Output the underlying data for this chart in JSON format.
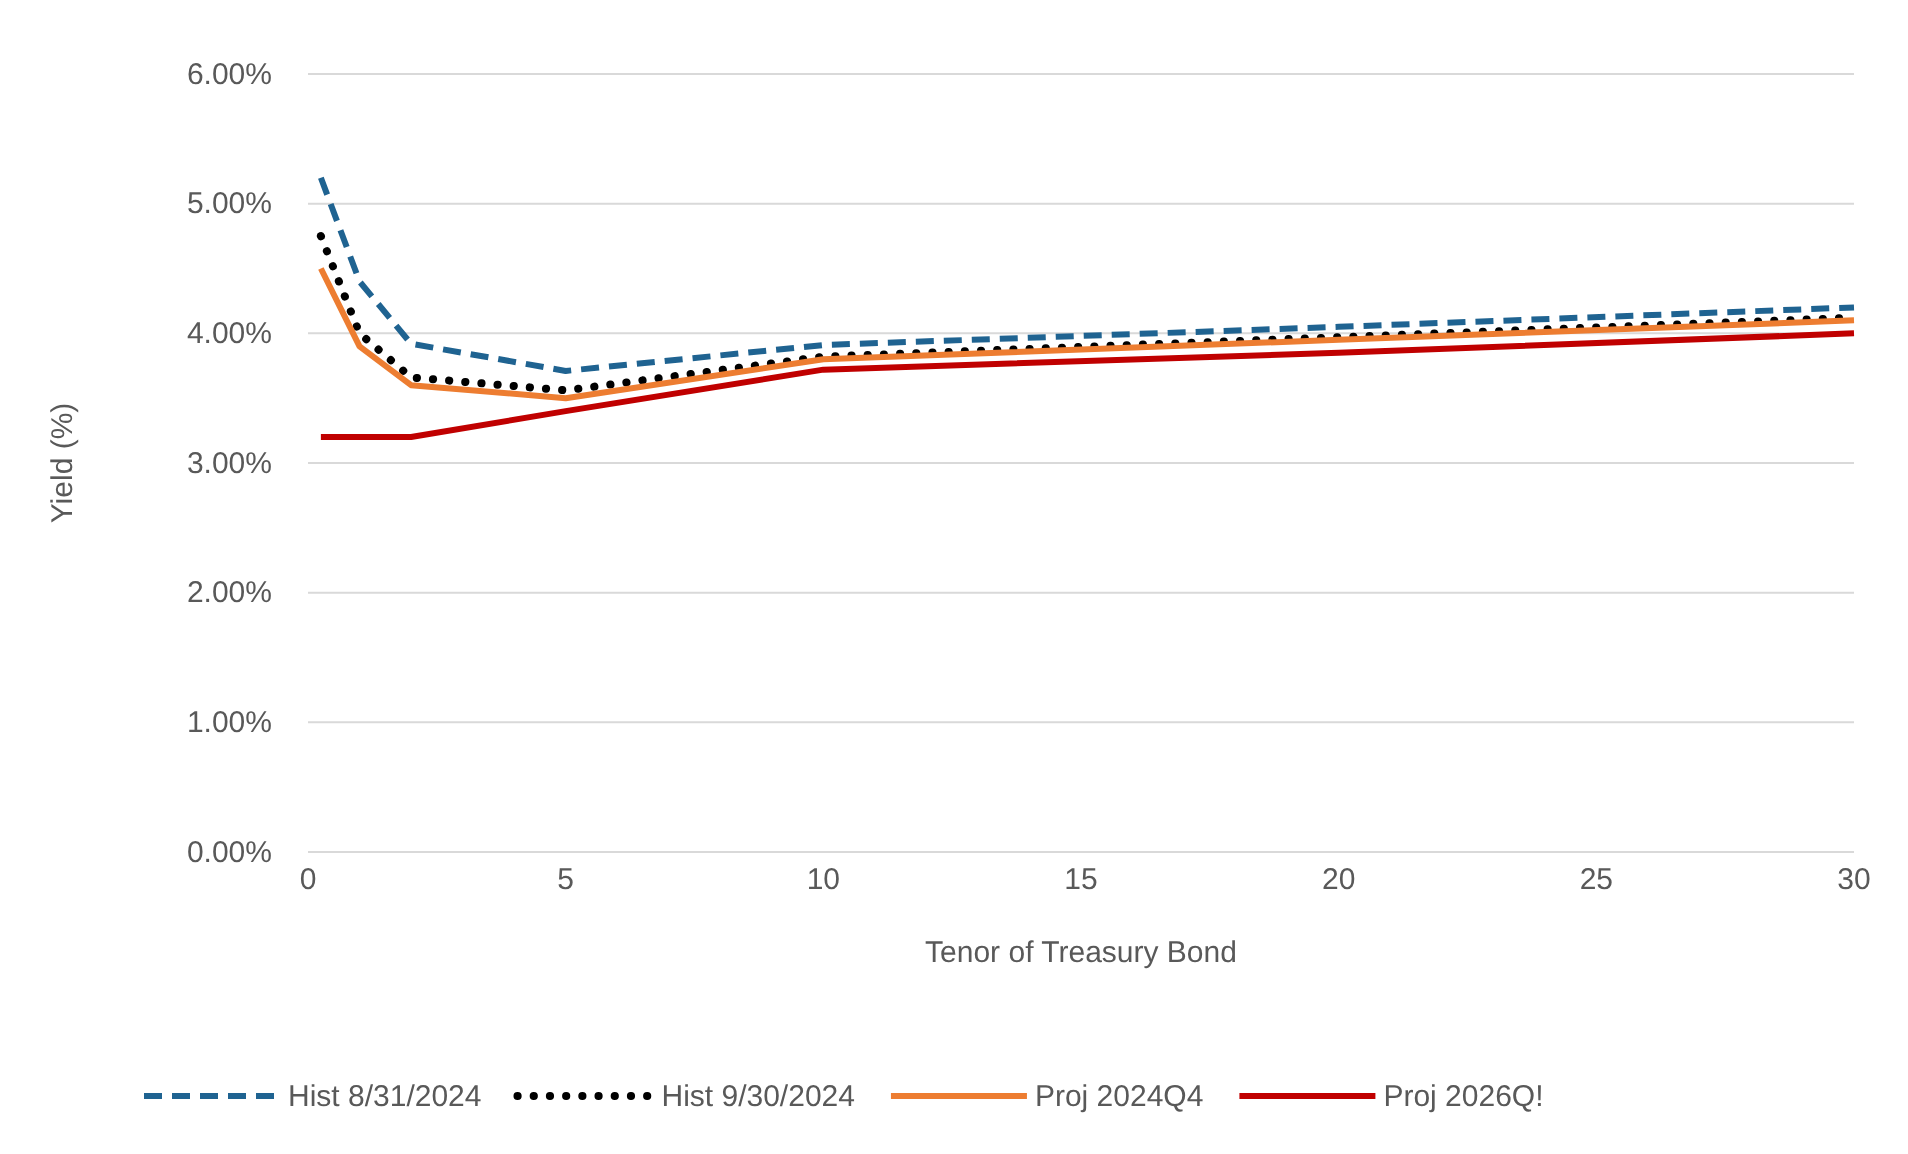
{
  "chart_data": {
    "type": "line",
    "xlabel": "Tenor of Treasury Bond",
    "ylabel": "Yield (%)",
    "x": [
      0.25,
      1,
      2,
      5,
      10,
      20,
      30
    ],
    "xlim": [
      0,
      30
    ],
    "xticks": [
      0,
      5,
      10,
      15,
      20,
      25,
      30
    ],
    "ylim": [
      0,
      6
    ],
    "yticks": [
      {
        "value": 0,
        "label": "0.00%"
      },
      {
        "value": 1,
        "label": "1.00%"
      },
      {
        "value": 2,
        "label": "2.00%"
      },
      {
        "value": 3,
        "label": "3.00%"
      },
      {
        "value": 4,
        "label": "4.00%"
      },
      {
        "value": 5,
        "label": "5.00%"
      },
      {
        "value": 6,
        "label": "6.00%"
      }
    ],
    "grid": "y",
    "legend": "bottom",
    "marker": "none",
    "series": [
      {
        "name": "Hist 8/31/2024",
        "color": "#1f6391",
        "line_style": "dashed",
        "values": [
          5.2,
          4.4,
          3.92,
          3.71,
          3.91,
          4.05,
          4.2
        ]
      },
      {
        "name": "Hist 9/30/2024",
        "color": "#000000",
        "line_style": "dotted",
        "values": [
          4.75,
          4.0,
          3.66,
          3.56,
          3.82,
          3.97,
          4.12
        ]
      },
      {
        "name": "Proj 2024Q4",
        "color": "#ed7d31",
        "line_style": "solid",
        "values": [
          4.5,
          3.9,
          3.6,
          3.5,
          3.8,
          3.95,
          4.1
        ]
      },
      {
        "name": "Proj 2026Q!",
        "color": "#c00000",
        "line_style": "solid",
        "values": [
          3.2,
          3.2,
          3.2,
          3.4,
          3.72,
          3.85,
          4.0
        ]
      }
    ]
  }
}
